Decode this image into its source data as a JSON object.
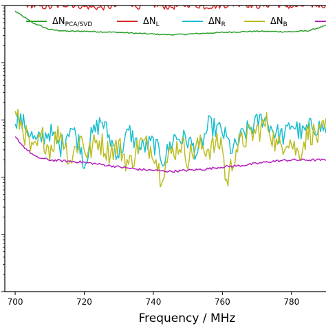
{
  "chart_data": {
    "type": "line",
    "title": "",
    "xlabel": "Frequency / MHz",
    "ylabel": "",
    "xlim": [
      697,
      790
    ],
    "ylim": [
      -5,
      0
    ],
    "yscale": "log",
    "x_ticks": [
      700,
      720,
      740,
      760,
      780
    ],
    "x_tick_labels": [
      "700",
      "720",
      "740",
      "760",
      "780"
    ],
    "grid": false,
    "legend": "top, single row",
    "series": [
      {
        "name": "ΔN",
        "subscript": "PCA/SVD",
        "color": "#2ca02c",
        "x": [
          700,
          705,
          710,
          715,
          720,
          730,
          740,
          745,
          750,
          760,
          770,
          780,
          785,
          790
        ],
        "y": [
          -0.1,
          -0.3,
          -0.42,
          -0.45,
          -0.45,
          -0.47,
          -0.5,
          -0.51,
          -0.5,
          -0.47,
          -0.45,
          -0.46,
          -0.44,
          -0.35
        ]
      },
      {
        "name": "ΔN",
        "subscript": "L",
        "color": "#d62728",
        "x": [
          700,
          705,
          710,
          715,
          720,
          725,
          730,
          733,
          735,
          740,
          745,
          750,
          755,
          760,
          765,
          770,
          775,
          780,
          785,
          790
        ],
        "y": [
          0.05,
          0.0,
          -0.03,
          0.02,
          -0.02,
          -0.04,
          0.0,
          0.06,
          -0.02,
          0.01,
          -0.03,
          0.02,
          -0.02,
          0.0,
          0.03,
          -0.01,
          0.02,
          -0.02,
          0.01,
          0.0
        ]
      },
      {
        "name": "ΔN",
        "subscript": "R",
        "color": "#17becf",
        "x": [
          700,
          703,
          706,
          710,
          713,
          716,
          719,
          720,
          722,
          725,
          728,
          730,
          733,
          736,
          740,
          743,
          746,
          750,
          753,
          756,
          760,
          763,
          766,
          770,
          772,
          775,
          778,
          780,
          783,
          786,
          790
        ],
        "y": [
          -1.95,
          -2.1,
          -2.4,
          -2.2,
          -2.5,
          -2.1,
          -2.45,
          -2.8,
          -2.3,
          -2.0,
          -2.4,
          -2.6,
          -2.2,
          -2.5,
          -2.4,
          -2.7,
          -2.3,
          -2.35,
          -2.6,
          -2.1,
          -2.2,
          -2.55,
          -2.25,
          -2.05,
          -1.95,
          -2.2,
          -2.3,
          -2.05,
          -2.25,
          -2.1,
          -2.15
        ]
      },
      {
        "name": "ΔN",
        "subscript": "B",
        "color": "#bcbd22",
        "x": [
          700,
          702,
          705,
          708,
          710,
          713,
          716,
          719,
          721,
          724,
          727,
          730,
          733,
          736,
          740,
          742,
          745,
          748,
          750,
          753,
          756,
          760,
          761,
          764,
          767,
          770,
          773,
          776,
          779,
          782,
          785,
          788,
          790
        ],
        "y": [
          -1.95,
          -2.1,
          -2.6,
          -2.3,
          -2.5,
          -2.2,
          -2.7,
          -2.3,
          -2.6,
          -2.35,
          -2.55,
          -2.45,
          -2.8,
          -2.4,
          -2.5,
          -2.95,
          -2.6,
          -2.4,
          -2.65,
          -2.45,
          -2.5,
          -2.4,
          -3.15,
          -2.5,
          -2.3,
          -2.2,
          -2.05,
          -2.5,
          -2.3,
          -2.6,
          -2.2,
          -2.3,
          -2.15
        ]
      },
      {
        "name": "ΔN",
        "subscript": "",
        "color": "#b41fbc",
        "x": [
          700,
          703,
          706,
          710,
          715,
          720,
          725,
          730,
          735,
          740,
          745,
          750,
          755,
          760,
          765,
          770,
          775,
          780,
          785,
          790
        ],
        "y": [
          -2.3,
          -2.5,
          -2.65,
          -2.7,
          -2.72,
          -2.74,
          -2.78,
          -2.82,
          -2.86,
          -2.88,
          -2.9,
          -2.88,
          -2.86,
          -2.82,
          -2.8,
          -2.76,
          -2.72,
          -2.7,
          -2.7,
          -2.7
        ]
      }
    ]
  }
}
